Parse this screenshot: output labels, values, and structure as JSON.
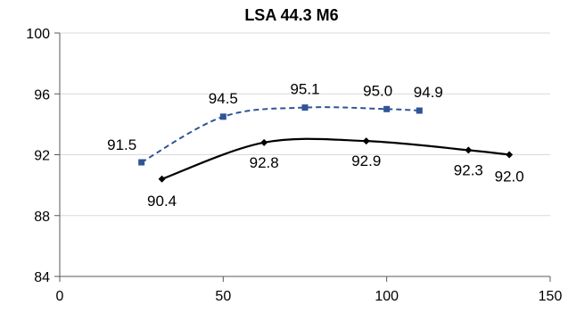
{
  "chart_data": {
    "type": "line",
    "title": "LSA 44.3 M6",
    "xlabel": "",
    "ylabel": "",
    "xlim": [
      0,
      150
    ],
    "ylim": [
      84,
      100
    ],
    "x_ticks": [
      "0",
      "50",
      "100",
      "150"
    ],
    "y_ticks": [
      "84",
      "88",
      "92",
      "96",
      "100"
    ],
    "x_tick_values": [
      0,
      50,
      100,
      150
    ],
    "y_tick_values": [
      84,
      88,
      92,
      96,
      100
    ],
    "grid": "horizontal",
    "legend": "none",
    "series": [
      {
        "style": "dashed",
        "color": "#2F5597",
        "marker": "square",
        "x": [
          25,
          50,
          75,
          100,
          110
        ],
        "y": [
          91.5,
          94.5,
          95.1,
          95.0,
          94.9
        ],
        "labels": [
          "91.5",
          "94.5",
          "95.1",
          "95.0",
          "94.9"
        ]
      },
      {
        "style": "solid",
        "color": "#000000",
        "marker": "diamond",
        "x": [
          31.25,
          62.5,
          93.75,
          125,
          137.5
        ],
        "y": [
          90.4,
          92.8,
          92.9,
          92.3,
          92.0
        ],
        "labels": [
          "90.4",
          "92.8",
          "92.9",
          "92.3",
          "92.0"
        ]
      }
    ]
  }
}
